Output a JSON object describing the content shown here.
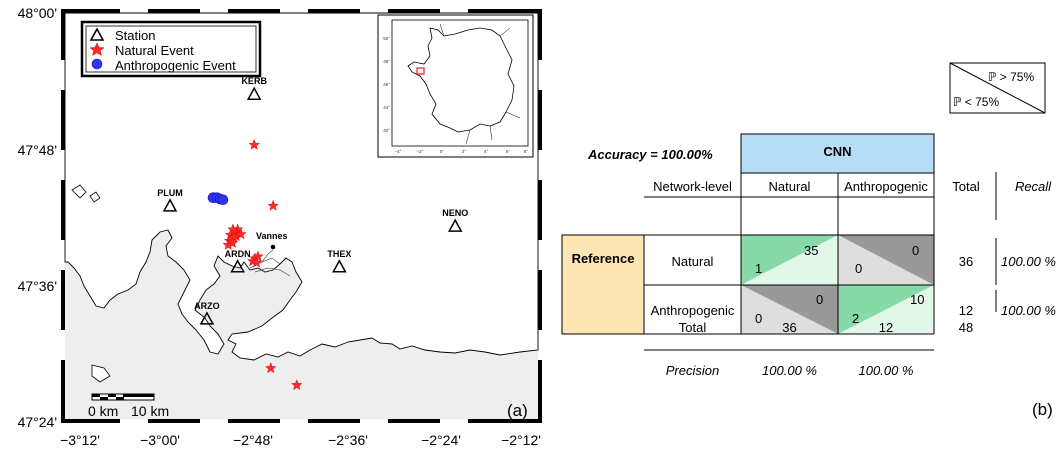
{
  "colors": {
    "natural_event": "#ff2a2a",
    "anthropogenic_event": "#3030ff",
    "cnn_header": "#b7dcf5",
    "reference_cell": "#fde6b3",
    "correct_dark": "#88d9a8",
    "correct_light": "#e2f6ea",
    "wrong_dark": "#999999",
    "wrong_light": "#dedede",
    "land": "#ffffff",
    "sea": "#eeeeee"
  },
  "map": {
    "panel_label": "(a)",
    "legend": {
      "station": "Station",
      "natural": "Natural Event",
      "anthropogenic": "Anthropogenic Event"
    },
    "scalebar": {
      "zero": "0 km",
      "ten": "10 km"
    },
    "city": "Vannes",
    "stations": [
      {
        "code": "KERB",
        "lon": -2.8,
        "lat": 47.88
      },
      {
        "code": "PLUM",
        "lon": -2.978,
        "lat": 47.715
      },
      {
        "code": "NENO",
        "lon": -2.375,
        "lat": 47.685
      },
      {
        "code": "ARDN",
        "lon": -2.835,
        "lat": 47.625
      },
      {
        "code": "THEX",
        "lon": -2.62,
        "lat": 47.625
      },
      {
        "code": "ARZO",
        "lon": -2.9,
        "lat": 47.548
      }
    ],
    "natural_events": [
      {
        "lon": -2.8,
        "lat": 47.805
      },
      {
        "lon": -2.76,
        "lat": 47.715
      },
      {
        "lon": -2.835,
        "lat": 47.68
      },
      {
        "lon": -2.845,
        "lat": 47.68
      },
      {
        "lon": -2.84,
        "lat": 47.675
      },
      {
        "lon": -2.85,
        "lat": 47.672
      },
      {
        "lon": -2.838,
        "lat": 47.67
      },
      {
        "lon": -2.828,
        "lat": 47.673
      },
      {
        "lon": -2.843,
        "lat": 47.668
      },
      {
        "lon": -2.852,
        "lat": 47.663
      },
      {
        "lon": -2.846,
        "lat": 47.66
      },
      {
        "lon": -2.855,
        "lat": 47.657
      },
      {
        "lon": -2.798,
        "lat": 47.637
      },
      {
        "lon": -2.792,
        "lat": 47.64
      },
      {
        "lon": -2.803,
        "lat": 47.633
      },
      {
        "lon": -2.795,
        "lat": 47.631
      },
      {
        "lon": -2.765,
        "lat": 47.475
      },
      {
        "lon": -2.71,
        "lat": 47.45
      }
    ],
    "anthropogenic_events": [
      {
        "lon": -2.887,
        "lat": 47.727
      },
      {
        "lon": -2.879,
        "lat": 47.727
      },
      {
        "lon": -2.872,
        "lat": 47.725
      },
      {
        "lon": -2.866,
        "lat": 47.724
      }
    ],
    "lon_ticks": [
      "−3°12'",
      "−3°00'",
      "−2°48'",
      "−2°36'",
      "−2°24'",
      "−2°12'"
    ],
    "lat_ticks": [
      "47°24'",
      "47°36'",
      "47°48'",
      "48°00'"
    ]
  },
  "inset": {
    "lat_ticks": [
      "42°",
      "44°",
      "46°",
      "48°",
      "50°"
    ],
    "lon_ticks": [
      "−4°",
      "−2°",
      "0°",
      "2°",
      "4°",
      "6°",
      "8°"
    ]
  },
  "matrix": {
    "panel_label": "(b)",
    "accuracy": "Accuracy = 100.00%",
    "model": "CNN",
    "row_header": "Network-level",
    "col_natural": "Natural",
    "col_anthropogenic": "Anthropogenic",
    "col_total": "Total",
    "col_recall": "Recall",
    "reference": "Reference",
    "row_natural": "Natural",
    "row_anthropogenic": "Anthropogenic",
    "cells": {
      "nn_top": "35",
      "nn_bottom": "1",
      "na_top": "0",
      "na_bottom": "0",
      "an_top": "0",
      "an_bottom": "0",
      "aa_top": "10",
      "aa_bottom": "2"
    },
    "row_totals": [
      "36",
      "12"
    ],
    "recall": [
      "100.00 %",
      "100.00 %"
    ],
    "total_label": "Total",
    "col_totals": [
      "36",
      "12"
    ],
    "grand_total": "48",
    "precision_label": "Precision",
    "precision": [
      "100.00 %",
      "100.00 %"
    ],
    "key_high": "ℙ > 75%",
    "key_low": "ℙ < 75%"
  }
}
